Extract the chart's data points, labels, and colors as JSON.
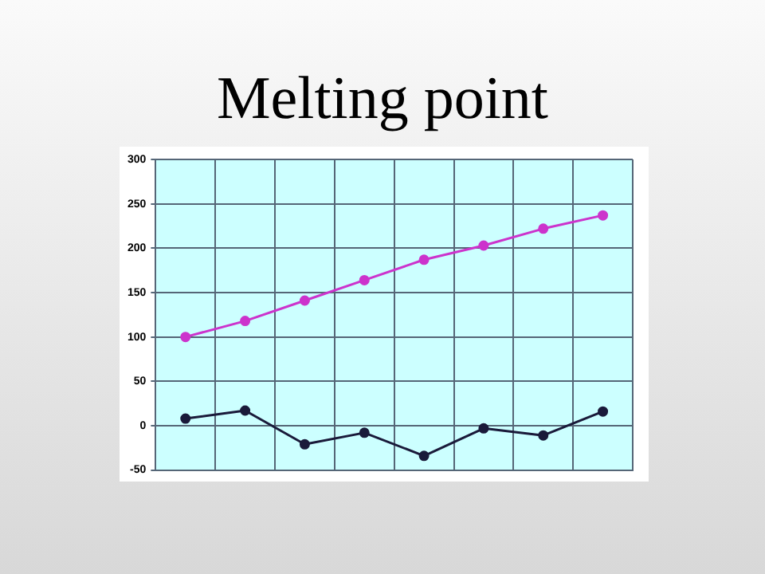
{
  "chart_data": {
    "type": "line",
    "title": "Melting point",
    "categories": [
      null,
      null,
      null,
      null,
      null,
      null,
      null,
      null
    ],
    "series": [
      {
        "color": "#cc33cc",
        "values": [
          100,
          118,
          141,
          164,
          187,
          203,
          222,
          237
        ]
      },
      {
        "color": "#1a1a3a",
        "values": [
          8,
          17,
          -21,
          -8,
          -34,
          -3,
          -11,
          16
        ]
      }
    ],
    "ylim": [
      -50,
      300
    ],
    "yticks": [
      -50,
      0,
      50,
      100,
      150,
      200,
      250,
      300
    ],
    "grid": true,
    "legend": false,
    "marker": "circle",
    "line_style": "solid"
  }
}
